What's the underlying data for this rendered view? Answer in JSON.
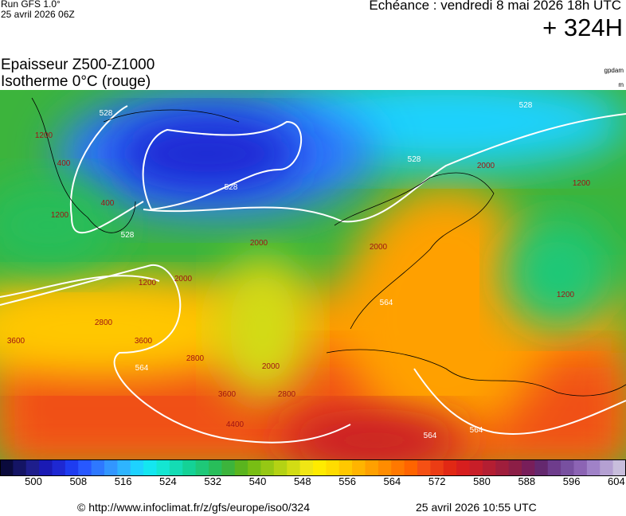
{
  "header": {
    "run": "Run GFS 1.0°",
    "run_date": "25 avril 2026 06Z",
    "valid": "Echéance : vendredi 8 mai 2026 18h UTC",
    "lead": "+ 324H"
  },
  "titles": {
    "line1": "Epaisseur Z500-Z1000",
    "line2": "Isotherme 0°C (rouge)",
    "unit1": "gpdam",
    "unit2": "m"
  },
  "contour_labels": [
    "528",
    "528",
    "528",
    "528",
    "528",
    "564",
    "564",
    "564",
    "564",
    "1200",
    "1200",
    "1200",
    "1200",
    "400",
    "400",
    "2000",
    "2000",
    "2000",
    "2000",
    "2800",
    "2800",
    "2800",
    "3600",
    "3600",
    "3600",
    "4400",
    "1200",
    "2000"
  ],
  "colorbar": {
    "labels": [
      "500",
      "508",
      "516",
      "524",
      "532",
      "540",
      "548",
      "556",
      "564",
      "572",
      "580",
      "588",
      "596",
      "604"
    ],
    "colors": [
      "#0a0a3c",
      "#141464",
      "#1e1e8c",
      "#1a1ab4",
      "#1e28d2",
      "#1e3cf0",
      "#2858ff",
      "#2e78ff",
      "#3296ff",
      "#2eb4ff",
      "#1ed2ff",
      "#14e6f0",
      "#14e6d2",
      "#14dcb4",
      "#14d296",
      "#1ec878",
      "#28be5a",
      "#3cb43c",
      "#5ab41e",
      "#78be14",
      "#96c814",
      "#b4d214",
      "#d2dc14",
      "#f0e614",
      "#ffeb00",
      "#ffdc00",
      "#ffc800",
      "#ffb400",
      "#ffa000",
      "#ff8c00",
      "#ff7800",
      "#ff6400",
      "#f55014",
      "#eb3c14",
      "#e12814",
      "#d71e1e",
      "#c81e28",
      "#b41e32",
      "#a01e3c",
      "#8c1e46",
      "#781e5a",
      "#64286e",
      "#6e3c8c",
      "#7850a0",
      "#8c64b4",
      "#a082c8",
      "#b4a0d2",
      "#c8bedc"
    ]
  },
  "footer": {
    "source": "© http://www.infoclimat.fr/z/gfs/europe/iso0/324",
    "generated": "25 avril 2026 10:55 UTC"
  }
}
